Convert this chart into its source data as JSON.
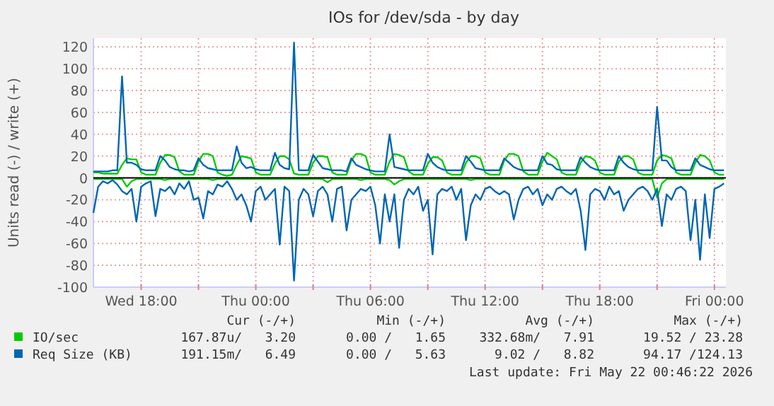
{
  "chart_data": {
    "type": "line",
    "title": "IOs for /dev/sda - by day",
    "ylabel": "Units read (-) / write (+)",
    "x": [
      "2026-05-20T15:30",
      "2026-05-20T15:45",
      "2026-05-20T16:00",
      "2026-05-20T16:15",
      "2026-05-20T16:30",
      "2026-05-20T16:45",
      "2026-05-20T17:00",
      "2026-05-20T17:15",
      "2026-05-20T17:30",
      "2026-05-20T17:45",
      "2026-05-20T18:00",
      "2026-05-20T18:15",
      "2026-05-20T18:30",
      "2026-05-20T18:45",
      "2026-05-20T19:00",
      "2026-05-20T19:15",
      "2026-05-20T19:30",
      "2026-05-20T19:45",
      "2026-05-20T20:00",
      "2026-05-20T20:15",
      "2026-05-20T20:30",
      "2026-05-20T20:45",
      "2026-05-20T21:00",
      "2026-05-20T21:15",
      "2026-05-20T21:30",
      "2026-05-20T21:45",
      "2026-05-20T22:00",
      "2026-05-20T22:15",
      "2026-05-20T22:30",
      "2026-05-20T22:45",
      "2026-05-20T23:00",
      "2026-05-20T23:15",
      "2026-05-20T23:30",
      "2026-05-20T23:45",
      "2026-05-21T00:00",
      "2026-05-21T00:15",
      "2026-05-21T00:30",
      "2026-05-21T00:45",
      "2026-05-21T01:00",
      "2026-05-21T01:15",
      "2026-05-21T01:30",
      "2026-05-21T01:45",
      "2026-05-21T02:00",
      "2026-05-21T02:15",
      "2026-05-21T02:30",
      "2026-05-21T02:45",
      "2026-05-21T03:00",
      "2026-05-21T03:15",
      "2026-05-21T03:30",
      "2026-05-21T03:45",
      "2026-05-21T04:00",
      "2026-05-21T04:15",
      "2026-05-21T04:30",
      "2026-05-21T04:45",
      "2026-05-21T05:00",
      "2026-05-21T05:15",
      "2026-05-21T05:30",
      "2026-05-21T05:45",
      "2026-05-21T06:00",
      "2026-05-21T06:15",
      "2026-05-21T06:30",
      "2026-05-21T06:45",
      "2026-05-21T07:00",
      "2026-05-21T07:15",
      "2026-05-21T07:30",
      "2026-05-21T07:45",
      "2026-05-21T08:00",
      "2026-05-21T08:15",
      "2026-05-21T08:30",
      "2026-05-21T08:45",
      "2026-05-21T09:00",
      "2026-05-21T09:15",
      "2026-05-21T09:30",
      "2026-05-21T09:45",
      "2026-05-21T10:00",
      "2026-05-21T10:15",
      "2026-05-21T10:30",
      "2026-05-21T10:45",
      "2026-05-21T11:00",
      "2026-05-21T11:15",
      "2026-05-21T11:30",
      "2026-05-21T11:45",
      "2026-05-21T12:00",
      "2026-05-21T12:15",
      "2026-05-21T12:30",
      "2026-05-21T12:45",
      "2026-05-21T13:00",
      "2026-05-21T13:15",
      "2026-05-21T13:30",
      "2026-05-21T13:45",
      "2026-05-21T14:00",
      "2026-05-21T14:15",
      "2026-05-21T14:30",
      "2026-05-21T14:45",
      "2026-05-21T15:00",
      "2026-05-21T15:15",
      "2026-05-21T15:30",
      "2026-05-21T15:45",
      "2026-05-21T16:00",
      "2026-05-21T16:15",
      "2026-05-21T16:30",
      "2026-05-21T16:45",
      "2026-05-21T17:00",
      "2026-05-21T17:15",
      "2026-05-21T17:30",
      "2026-05-21T17:45",
      "2026-05-21T18:00",
      "2026-05-21T18:15",
      "2026-05-21T18:30",
      "2026-05-21T18:45",
      "2026-05-21T19:00",
      "2026-05-21T19:15",
      "2026-05-21T19:30",
      "2026-05-21T19:45",
      "2026-05-21T20:00",
      "2026-05-21T20:15",
      "2026-05-21T20:30",
      "2026-05-21T20:45",
      "2026-05-21T21:00",
      "2026-05-21T21:15",
      "2026-05-21T21:30",
      "2026-05-21T21:45",
      "2026-05-21T22:00",
      "2026-05-21T22:15",
      "2026-05-21T22:30",
      "2026-05-21T22:45",
      "2026-05-21T23:00",
      "2026-05-21T23:15",
      "2026-05-21T23:30",
      "2026-05-21T23:45",
      "2026-05-22T00:00",
      "2026-05-22T00:15",
      "2026-05-22T00:30"
    ],
    "series": [
      {
        "name": "IO/sec",
        "color": "#00cc00",
        "values": [
          5,
          5,
          4,
          4,
          4,
          4,
          12,
          18,
          17,
          17,
          5,
          3,
          3,
          3,
          14,
          21,
          21,
          19,
          6,
          3,
          3,
          3,
          15,
          22,
          22,
          20,
          5,
          3,
          2,
          3,
          12,
          20,
          19,
          18,
          5,
          3,
          3,
          3,
          13,
          20,
          20,
          17,
          4,
          3,
          3,
          3,
          14,
          20,
          20,
          19,
          5,
          3,
          3,
          3,
          16,
          22,
          22,
          20,
          5,
          3,
          3,
          3,
          15,
          22,
          21,
          19,
          6,
          3,
          3,
          3,
          13,
          19,
          19,
          16,
          5,
          3,
          3,
          3,
          14,
          20,
          20,
          18,
          5,
          3,
          3,
          3,
          16,
          22,
          22,
          20,
          6,
          3,
          3,
          3,
          15,
          23,
          20,
          17,
          5,
          3,
          3,
          3,
          14,
          20,
          19,
          16,
          5,
          3,
          3,
          3,
          15,
          20,
          20,
          17,
          5,
          3,
          3,
          3,
          16,
          21,
          20,
          18,
          5,
          3,
          3,
          3,
          14,
          21,
          20,
          16,
          5,
          3,
          3
        ]
      },
      {
        "name": "Req Size (KB)",
        "color": "#0066b3",
        "values": [
          6,
          6,
          6,
          6,
          7,
          7,
          93,
          14,
          14,
          12,
          8,
          7,
          7,
          7,
          20,
          16,
          10,
          8,
          7,
          7,
          6,
          7,
          18,
          12,
          9,
          8,
          7,
          7,
          7,
          7,
          29,
          14,
          9,
          10,
          8,
          7,
          7,
          7,
          23,
          12,
          9,
          8,
          124,
          7,
          7,
          7,
          21,
          15,
          9,
          8,
          7,
          7,
          7,
          6,
          18,
          12,
          10,
          8,
          7,
          6,
          6,
          6,
          40,
          10,
          9,
          8,
          7,
          7,
          7,
          7,
          22,
          14,
          10,
          8,
          7,
          7,
          7,
          7,
          20,
          15,
          9,
          8,
          7,
          7,
          7,
          7,
          18,
          14,
          10,
          8,
          7,
          7,
          7,
          7,
          20,
          13,
          12,
          8,
          7,
          7,
          7,
          7,
          19,
          14,
          10,
          8,
          7,
          7,
          7,
          7,
          20,
          14,
          10,
          8,
          7,
          7,
          7,
          7,
          65,
          16,
          16,
          10,
          7,
          7,
          7,
          7,
          18,
          12,
          10,
          8,
          7,
          7,
          7
        ]
      },
      {
        "color": "#00cc00",
        "values": [
          -1,
          -1,
          -1,
          -1,
          -1,
          -1,
          -1,
          -8,
          -3,
          -1,
          -1,
          -1,
          -1,
          -1,
          -1,
          -2,
          -1,
          -1,
          -1,
          -1,
          -1,
          -1,
          -1,
          -1,
          -1,
          -2,
          -1,
          -1,
          -1,
          -1,
          -1,
          -1,
          -1,
          -1,
          -1,
          -1,
          -1,
          -1,
          -1,
          -1,
          -1,
          -1,
          -1,
          -1,
          -1,
          -1,
          -1,
          -1,
          -1,
          -4,
          -1,
          -1,
          -1,
          -1,
          -1,
          -1,
          -2,
          -1,
          -1,
          -1,
          -1,
          -1,
          -2,
          -6,
          -3,
          -1,
          -1,
          -1,
          -1,
          -1,
          -1,
          -1,
          -1,
          -1,
          -1,
          -1,
          -1,
          -1,
          -1,
          -2,
          -1,
          -1,
          -1,
          -1,
          -1,
          -1,
          -1,
          -1,
          -1,
          -1,
          -1,
          -1,
          -1,
          -1,
          -1,
          -1,
          -1,
          -1,
          -1,
          -1,
          -1,
          -1,
          -1,
          -1,
          -1,
          -1,
          -1,
          -1,
          -1,
          -1,
          -1,
          -1,
          -1,
          -1,
          -1,
          -1,
          -1,
          -1,
          -18,
          -5,
          -1,
          -1,
          -1,
          -1,
          -1,
          -1,
          -1,
          -1,
          -1,
          -1,
          -1,
          -1,
          -1
        ]
      },
      {
        "color": "#0066b3",
        "values": [
          -32,
          -8,
          -3,
          -5,
          -2,
          -6,
          -12,
          -15,
          -10,
          -40,
          -8,
          -5,
          -3,
          -35,
          -10,
          -12,
          -8,
          -15,
          -5,
          -10,
          -3,
          -20,
          -18,
          -37,
          -12,
          -15,
          -6,
          -8,
          -3,
          -10,
          -20,
          -15,
          -25,
          -40,
          -12,
          -8,
          -20,
          -15,
          -10,
          -61,
          -8,
          -12,
          -94,
          -20,
          -10,
          -15,
          -35,
          -12,
          -8,
          -15,
          -40,
          -10,
          -8,
          -48,
          -20,
          -15,
          -10,
          -12,
          -8,
          -25,
          -60,
          -15,
          -40,
          -15,
          -64,
          -20,
          -10,
          -15,
          -8,
          -30,
          -20,
          -70,
          -15,
          -10,
          -12,
          -8,
          -20,
          -10,
          -57,
          -25,
          -15,
          -20,
          -10,
          -8,
          -12,
          -15,
          -12,
          -15,
          -38,
          -20,
          -10,
          -8,
          -15,
          -10,
          -25,
          -15,
          -20,
          -10,
          -8,
          -12,
          -15,
          -10,
          -30,
          -66,
          -15,
          -10,
          -12,
          -20,
          -8,
          -15,
          -12,
          -30,
          -20,
          -15,
          -10,
          -8,
          -12,
          -20,
          -10,
          -44,
          -15,
          -20,
          -10,
          -8,
          -12,
          -57,
          -20,
          -75,
          -15,
          -55,
          -10,
          -8,
          -5
        ]
      }
    ],
    "xlim": [
      "2026-05-20T15:30",
      "2026-05-22T00:36"
    ],
    "xticks": [
      {
        "value": "2026-05-20T18:00",
        "label": "Wed 18:00"
      },
      {
        "value": "2026-05-20T21:00",
        "label": null
      },
      {
        "value": "2026-05-21T00:00",
        "label": "Thu 00:00"
      },
      {
        "value": "2026-05-21T03:00",
        "label": null
      },
      {
        "value": "2026-05-21T06:00",
        "label": "Thu 06:00"
      },
      {
        "value": "2026-05-21T09:00",
        "label": null
      },
      {
        "value": "2026-05-21T12:00",
        "label": "Thu 12:00"
      },
      {
        "value": "2026-05-21T15:00",
        "label": null
      },
      {
        "value": "2026-05-21T18:00",
        "label": "Thu 18:00"
      },
      {
        "value": "2026-05-21T21:00",
        "label": null
      },
      {
        "value": "2026-05-22T00:00",
        "label": "Fri 00:00"
      }
    ],
    "ylim": [
      -100,
      128
    ],
    "yticks": [
      -100,
      -80,
      -60,
      -40,
      -20,
      0,
      20,
      40,
      60,
      80,
      100,
      120
    ],
    "grid": true,
    "legend": "bottom",
    "ref_lines": [
      {
        "axis": "y",
        "value": 0,
        "color": "#000000"
      }
    ],
    "annotations": [
      "Cur (-/+)",
      "Min (-/+)",
      "Avg (-/+)",
      "Max (-/+)",
      "167.87u/   3.20",
      "0.00 /   1.65",
      "332.68m/   7.91",
      "19.52 / 23.28",
      "191.15m/   6.49",
      "0.00 /   5.63",
      "9.02 /   8.82",
      "94.17 /124.13",
      "Last update: Fri May 22 00:46:22 2026"
    ]
  }
}
